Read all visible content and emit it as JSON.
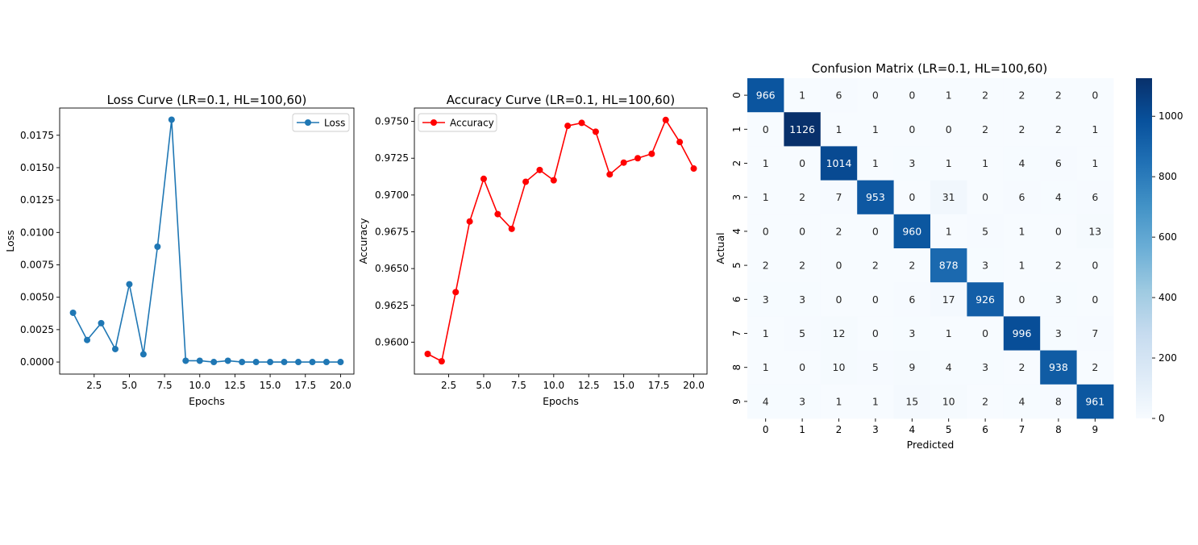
{
  "chart_data": [
    {
      "type": "line",
      "title": "Loss Curve (LR=0.1, HL=100,60)",
      "xlabel": "Epochs",
      "ylabel": "Loss",
      "x": [
        1,
        2,
        3,
        4,
        5,
        6,
        7,
        8,
        9,
        10,
        11,
        12,
        13,
        14,
        15,
        16,
        17,
        18,
        19,
        20
      ],
      "xticks": [
        "2.5",
        "5.0",
        "7.5",
        "10.0",
        "12.5",
        "15.0",
        "17.5",
        "20.0"
      ],
      "yticks": [
        "0.0000",
        "0.0025",
        "0.0050",
        "0.0075",
        "0.0100",
        "0.0125",
        "0.0150",
        "0.0175"
      ],
      "xlim": [
        0.05,
        20.95
      ],
      "ylim": [
        -0.00093,
        0.0196
      ],
      "legend_position": "upper right",
      "grid": false,
      "series": [
        {
          "name": "Loss",
          "color": "#1f77b4",
          "values": [
            0.0038,
            0.0017,
            0.003,
            0.001,
            0.006,
            0.0006,
            0.0089,
            0.0187,
            0.0001,
            0.0001,
            0.0,
            0.0001,
            0.0,
            0.0,
            0.0,
            0.0,
            0.0,
            0.0,
            0.0,
            0.0
          ]
        }
      ]
    },
    {
      "type": "line",
      "title": "Accuracy Curve (LR=0.1, HL=100,60)",
      "xlabel": "Epochs",
      "ylabel": "Accuracy",
      "x": [
        1,
        2,
        3,
        4,
        5,
        6,
        7,
        8,
        9,
        10,
        11,
        12,
        13,
        14,
        15,
        16,
        17,
        18,
        19,
        20
      ],
      "xticks": [
        "2.5",
        "5.0",
        "7.5",
        "10.0",
        "12.5",
        "15.0",
        "17.5",
        "20.0"
      ],
      "yticks": [
        "0.9600",
        "0.9625",
        "0.9650",
        "0.9675",
        "0.9700",
        "0.9725",
        "0.9750"
      ],
      "xlim": [
        0.05,
        20.95
      ],
      "ylim": [
        0.95783,
        0.97591
      ],
      "legend_position": "upper left",
      "grid": false,
      "series": [
        {
          "name": "Accuracy",
          "color": "#ff0000",
          "values": [
            0.9592,
            0.9587,
            0.9634,
            0.9682,
            0.9711,
            0.9687,
            0.9677,
            0.9709,
            0.9717,
            0.971,
            0.9747,
            0.9749,
            0.9743,
            0.9714,
            0.9722,
            0.9725,
            0.9728,
            0.9751,
            0.9736,
            0.9718
          ]
        }
      ]
    },
    {
      "type": "heatmap",
      "title": "Confusion Matrix (LR=0.1, HL=100,60)",
      "xlabel": "Predicted",
      "ylabel": "Actual",
      "x_categories": [
        "0",
        "1",
        "2",
        "3",
        "4",
        "5",
        "6",
        "7",
        "8",
        "9"
      ],
      "y_categories": [
        "0",
        "1",
        "2",
        "3",
        "4",
        "5",
        "6",
        "7",
        "8",
        "9"
      ],
      "colormap": "Blues",
      "colorbar_ticks": [
        "0",
        "200",
        "400",
        "600",
        "800",
        "1000"
      ],
      "vmin": 0,
      "vmax": 1126,
      "values": [
        [
          966,
          1,
          6,
          0,
          0,
          1,
          2,
          2,
          2,
          0
        ],
        [
          0,
          1126,
          1,
          1,
          0,
          0,
          2,
          2,
          2,
          1
        ],
        [
          1,
          0,
          1014,
          1,
          3,
          1,
          1,
          4,
          6,
          1
        ],
        [
          1,
          2,
          7,
          953,
          0,
          31,
          0,
          6,
          4,
          6
        ],
        [
          0,
          0,
          2,
          0,
          960,
          1,
          5,
          1,
          0,
          13
        ],
        [
          2,
          2,
          0,
          2,
          2,
          878,
          3,
          1,
          2,
          0
        ],
        [
          3,
          3,
          0,
          0,
          6,
          17,
          926,
          0,
          3,
          0
        ],
        [
          1,
          5,
          12,
          0,
          3,
          1,
          0,
          996,
          3,
          7
        ],
        [
          1,
          0,
          10,
          5,
          9,
          4,
          3,
          2,
          938,
          2
        ],
        [
          4,
          3,
          1,
          1,
          15,
          10,
          2,
          4,
          8,
          961
        ]
      ]
    }
  ]
}
